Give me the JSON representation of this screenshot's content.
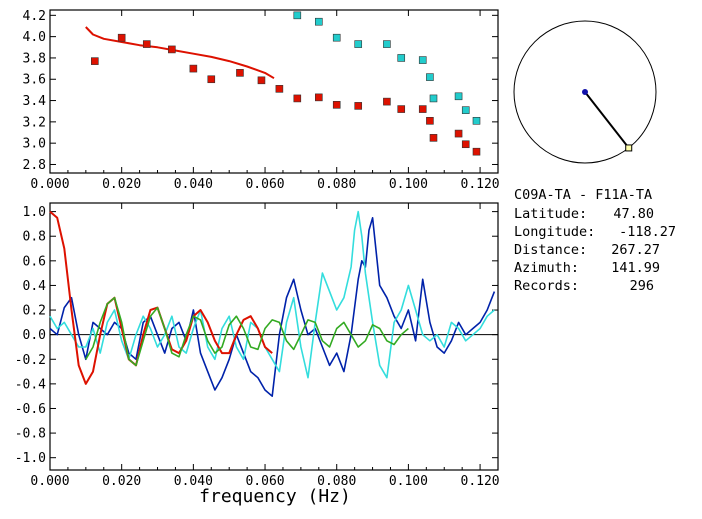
{
  "colors": {
    "dispersion_fit": "#dd1100",
    "red_points": "#dd1100",
    "cyan_points": "#22cccc",
    "trace_blue": "#0022aa",
    "trace_cyan": "#33dddd",
    "trace_red": "#dd1100",
    "trace_green": "#33aa22",
    "map_line": "#000000",
    "station_dot": "#1111aa",
    "station_box": "#ffffaa"
  },
  "info": {
    "pair": "C09A-TA  - F11A-TA",
    "latitude_label": "Latitude:",
    "latitude_value": "47.80",
    "longitude_label": "Longitude:",
    "longitude_value": "-118.27",
    "distance_label": "Distance:",
    "distance_value": "267.27",
    "azimuth_label": "Azimuth:",
    "azimuth_value": "141.99",
    "records_label": "Records:",
    "records_value": "296"
  },
  "chart_data": [
    {
      "type": "scatter",
      "title": "",
      "xlabel": "",
      "ylabel": "",
      "xlim": [
        0.0,
        0.125
      ],
      "ylim": [
        2.72,
        4.25
      ],
      "x_ticks": [
        "0.000",
        "0.020",
        "0.040",
        "0.060",
        "0.080",
        "0.100",
        "0.120"
      ],
      "y_ticks": [
        "2.8",
        "3.0",
        "3.2",
        "3.4",
        "3.6",
        "3.8",
        "4.0",
        "4.2"
      ],
      "grid": false,
      "series": [
        {
          "style": "line",
          "color_key": "dispersion_fit",
          "x": [
            0.01,
            0.012,
            0.015,
            0.02,
            0.025,
            0.03,
            0.035,
            0.04,
            0.045,
            0.05,
            0.055,
            0.06,
            0.0625
          ],
          "y": [
            4.09,
            4.02,
            3.98,
            3.95,
            3.92,
            3.9,
            3.87,
            3.84,
            3.81,
            3.77,
            3.72,
            3.66,
            3.61
          ]
        },
        {
          "style": "square",
          "color_key": "red_points",
          "x": [
            0.0125,
            0.02,
            0.027,
            0.034,
            0.04,
            0.045,
            0.053,
            0.059,
            0.064,
            0.069,
            0.075,
            0.08,
            0.086,
            0.094,
            0.098,
            0.104,
            0.106,
            0.107,
            0.114,
            0.116,
            0.119
          ],
          "y": [
            3.77,
            3.99,
            3.93,
            3.88,
            3.7,
            3.6,
            3.66,
            3.59,
            3.51,
            3.42,
            3.43,
            3.36,
            3.35,
            3.39,
            3.32,
            3.32,
            3.21,
            3.05,
            3.09,
            2.99,
            2.92
          ]
        },
        {
          "style": "square",
          "color_key": "cyan_points",
          "x": [
            0.069,
            0.075,
            0.08,
            0.086,
            0.094,
            0.098,
            0.104,
            0.106,
            0.107,
            0.114,
            0.116,
            0.119
          ],
          "y": [
            4.2,
            4.14,
            3.99,
            3.93,
            3.93,
            3.8,
            3.78,
            3.62,
            3.42,
            3.44,
            3.31,
            3.21
          ]
        }
      ]
    },
    {
      "type": "line",
      "title": "",
      "xlabel": "frequency  (Hz)",
      "ylabel": "",
      "xlim": [
        0.0,
        0.125
      ],
      "ylim": [
        -1.1,
        1.07
      ],
      "x_ticks": [
        "0.000",
        "0.020",
        "0.040",
        "0.060",
        "0.080",
        "0.100",
        "0.120"
      ],
      "y_ticks": [
        "1.0",
        "0.8",
        "0.6",
        "0.4",
        "0.2",
        "0.0",
        "-0.2",
        "-0.4",
        "-0.6",
        "-0.8",
        "-1.0"
      ],
      "zero_line": true,
      "grid": false,
      "series": [
        {
          "color_key": "trace_blue",
          "x": [
            0.0,
            0.002,
            0.004,
            0.006,
            0.008,
            0.01,
            0.012,
            0.014,
            0.016,
            0.018,
            0.02,
            0.022,
            0.024,
            0.026,
            0.028,
            0.03,
            0.032,
            0.034,
            0.036,
            0.038,
            0.04,
            0.042,
            0.044,
            0.046,
            0.048,
            0.05,
            0.052,
            0.054,
            0.056,
            0.058,
            0.06,
            0.062,
            0.064,
            0.066,
            0.068,
            0.07,
            0.072,
            0.074,
            0.076,
            0.078,
            0.08,
            0.082,
            0.084,
            0.086,
            0.087,
            0.088,
            0.089,
            0.09,
            0.092,
            0.094,
            0.096,
            0.098,
            0.1,
            0.102,
            0.104,
            0.106,
            0.108,
            0.11,
            0.112,
            0.114,
            0.116,
            0.118,
            0.12,
            0.122,
            0.124
          ],
          "y": [
            0.05,
            0.0,
            0.22,
            0.3,
            0.0,
            -0.2,
            0.1,
            0.05,
            0.0,
            0.1,
            0.05,
            -0.15,
            -0.2,
            0.1,
            0.15,
            0.0,
            -0.15,
            0.05,
            0.1,
            -0.05,
            0.2,
            -0.15,
            -0.3,
            -0.45,
            -0.35,
            -0.2,
            0.0,
            -0.15,
            -0.3,
            -0.35,
            -0.45,
            -0.5,
            0.0,
            0.3,
            0.45,
            0.2,
            0.0,
            0.05,
            -0.1,
            -0.25,
            -0.15,
            -0.3,
            0.0,
            0.45,
            0.6,
            0.55,
            0.85,
            0.95,
            0.4,
            0.3,
            0.15,
            0.05,
            0.2,
            -0.05,
            0.45,
            0.1,
            -0.1,
            -0.15,
            -0.05,
            0.1,
            0.0,
            0.05,
            0.1,
            0.2,
            0.35
          ]
        },
        {
          "color_key": "trace_cyan",
          "x": [
            0.0,
            0.002,
            0.004,
            0.006,
            0.008,
            0.01,
            0.012,
            0.014,
            0.016,
            0.018,
            0.02,
            0.022,
            0.024,
            0.026,
            0.028,
            0.03,
            0.032,
            0.034,
            0.036,
            0.038,
            0.04,
            0.042,
            0.044,
            0.046,
            0.048,
            0.05,
            0.052,
            0.054,
            0.056,
            0.058,
            0.06,
            0.062,
            0.064,
            0.066,
            0.068,
            0.07,
            0.072,
            0.074,
            0.076,
            0.078,
            0.08,
            0.082,
            0.084,
            0.085,
            0.086,
            0.087,
            0.088,
            0.09,
            0.092,
            0.094,
            0.096,
            0.098,
            0.1,
            0.102,
            0.104,
            0.106,
            0.108,
            0.11,
            0.112,
            0.114,
            0.116,
            0.118,
            0.12,
            0.122,
            0.124
          ],
          "y": [
            0.15,
            0.05,
            0.1,
            0.0,
            -0.1,
            -0.1,
            0.05,
            -0.15,
            0.1,
            0.2,
            -0.05,
            -0.2,
            0.0,
            0.15,
            0.05,
            -0.1,
            0.0,
            0.15,
            -0.1,
            -0.15,
            0.05,
            0.2,
            -0.1,
            -0.2,
            0.05,
            0.15,
            -0.1,
            -0.2,
            0.1,
            0.05,
            -0.1,
            -0.2,
            -0.3,
            0.1,
            0.3,
            -0.1,
            -0.35,
            0.1,
            0.5,
            0.35,
            0.2,
            0.3,
            0.55,
            0.85,
            1.0,
            0.8,
            0.5,
            0.1,
            -0.25,
            -0.35,
            0.1,
            0.2,
            0.4,
            0.2,
            0.0,
            -0.05,
            0.0,
            -0.1,
            0.1,
            0.05,
            -0.05,
            0.0,
            0.05,
            0.15,
            0.2
          ]
        },
        {
          "color_key": "trace_red",
          "x": [
            0.0,
            0.002,
            0.004,
            0.006,
            0.008,
            0.01,
            0.012,
            0.014,
            0.016,
            0.018,
            0.02,
            0.022,
            0.024,
            0.026,
            0.028,
            0.03,
            0.032,
            0.034,
            0.036,
            0.038,
            0.04,
            0.042,
            0.044,
            0.046,
            0.048,
            0.05,
            0.052,
            0.054,
            0.056,
            0.058,
            0.06,
            0.062
          ],
          "y": [
            1.0,
            0.95,
            0.7,
            0.2,
            -0.25,
            -0.4,
            -0.3,
            0.0,
            0.25,
            0.3,
            0.05,
            -0.2,
            -0.25,
            0.0,
            0.2,
            0.22,
            0.05,
            -0.12,
            -0.15,
            -0.05,
            0.15,
            0.2,
            0.1,
            -0.05,
            -0.15,
            -0.15,
            0.0,
            0.12,
            0.15,
            0.05,
            -0.1,
            -0.15
          ]
        },
        {
          "color_key": "trace_green",
          "x": [
            0.01,
            0.012,
            0.014,
            0.016,
            0.018,
            0.02,
            0.022,
            0.024,
            0.026,
            0.028,
            0.03,
            0.032,
            0.034,
            0.036,
            0.038,
            0.04,
            0.042,
            0.044,
            0.046,
            0.048,
            0.05,
            0.052,
            0.054,
            0.056,
            0.058,
            0.06,
            0.062,
            0.064,
            0.066,
            0.068,
            0.07,
            0.072,
            0.074,
            0.076,
            0.078,
            0.08,
            0.082,
            0.084,
            0.086,
            0.088,
            0.09,
            0.092,
            0.094,
            0.096,
            0.098,
            0.1
          ],
          "y": [
            -0.2,
            -0.1,
            0.1,
            0.25,
            0.3,
            0.1,
            -0.2,
            -0.25,
            -0.05,
            0.15,
            0.22,
            0.05,
            -0.15,
            -0.18,
            0.0,
            0.15,
            0.12,
            -0.05,
            -0.15,
            -0.1,
            0.08,
            0.15,
            0.05,
            -0.1,
            -0.12,
            0.05,
            0.12,
            0.1,
            -0.05,
            -0.12,
            0.0,
            0.12,
            0.1,
            -0.05,
            -0.1,
            0.05,
            0.1,
            0.0,
            -0.1,
            -0.05,
            0.08,
            0.05,
            -0.05,
            -0.08,
            0.0,
            0.05
          ]
        }
      ]
    }
  ],
  "map": {
    "station_a": {
      "label": "center",
      "marker": "dot"
    },
    "station_b": {
      "label": "edge",
      "marker": "square"
    },
    "azimuth_deg": 141.99
  }
}
